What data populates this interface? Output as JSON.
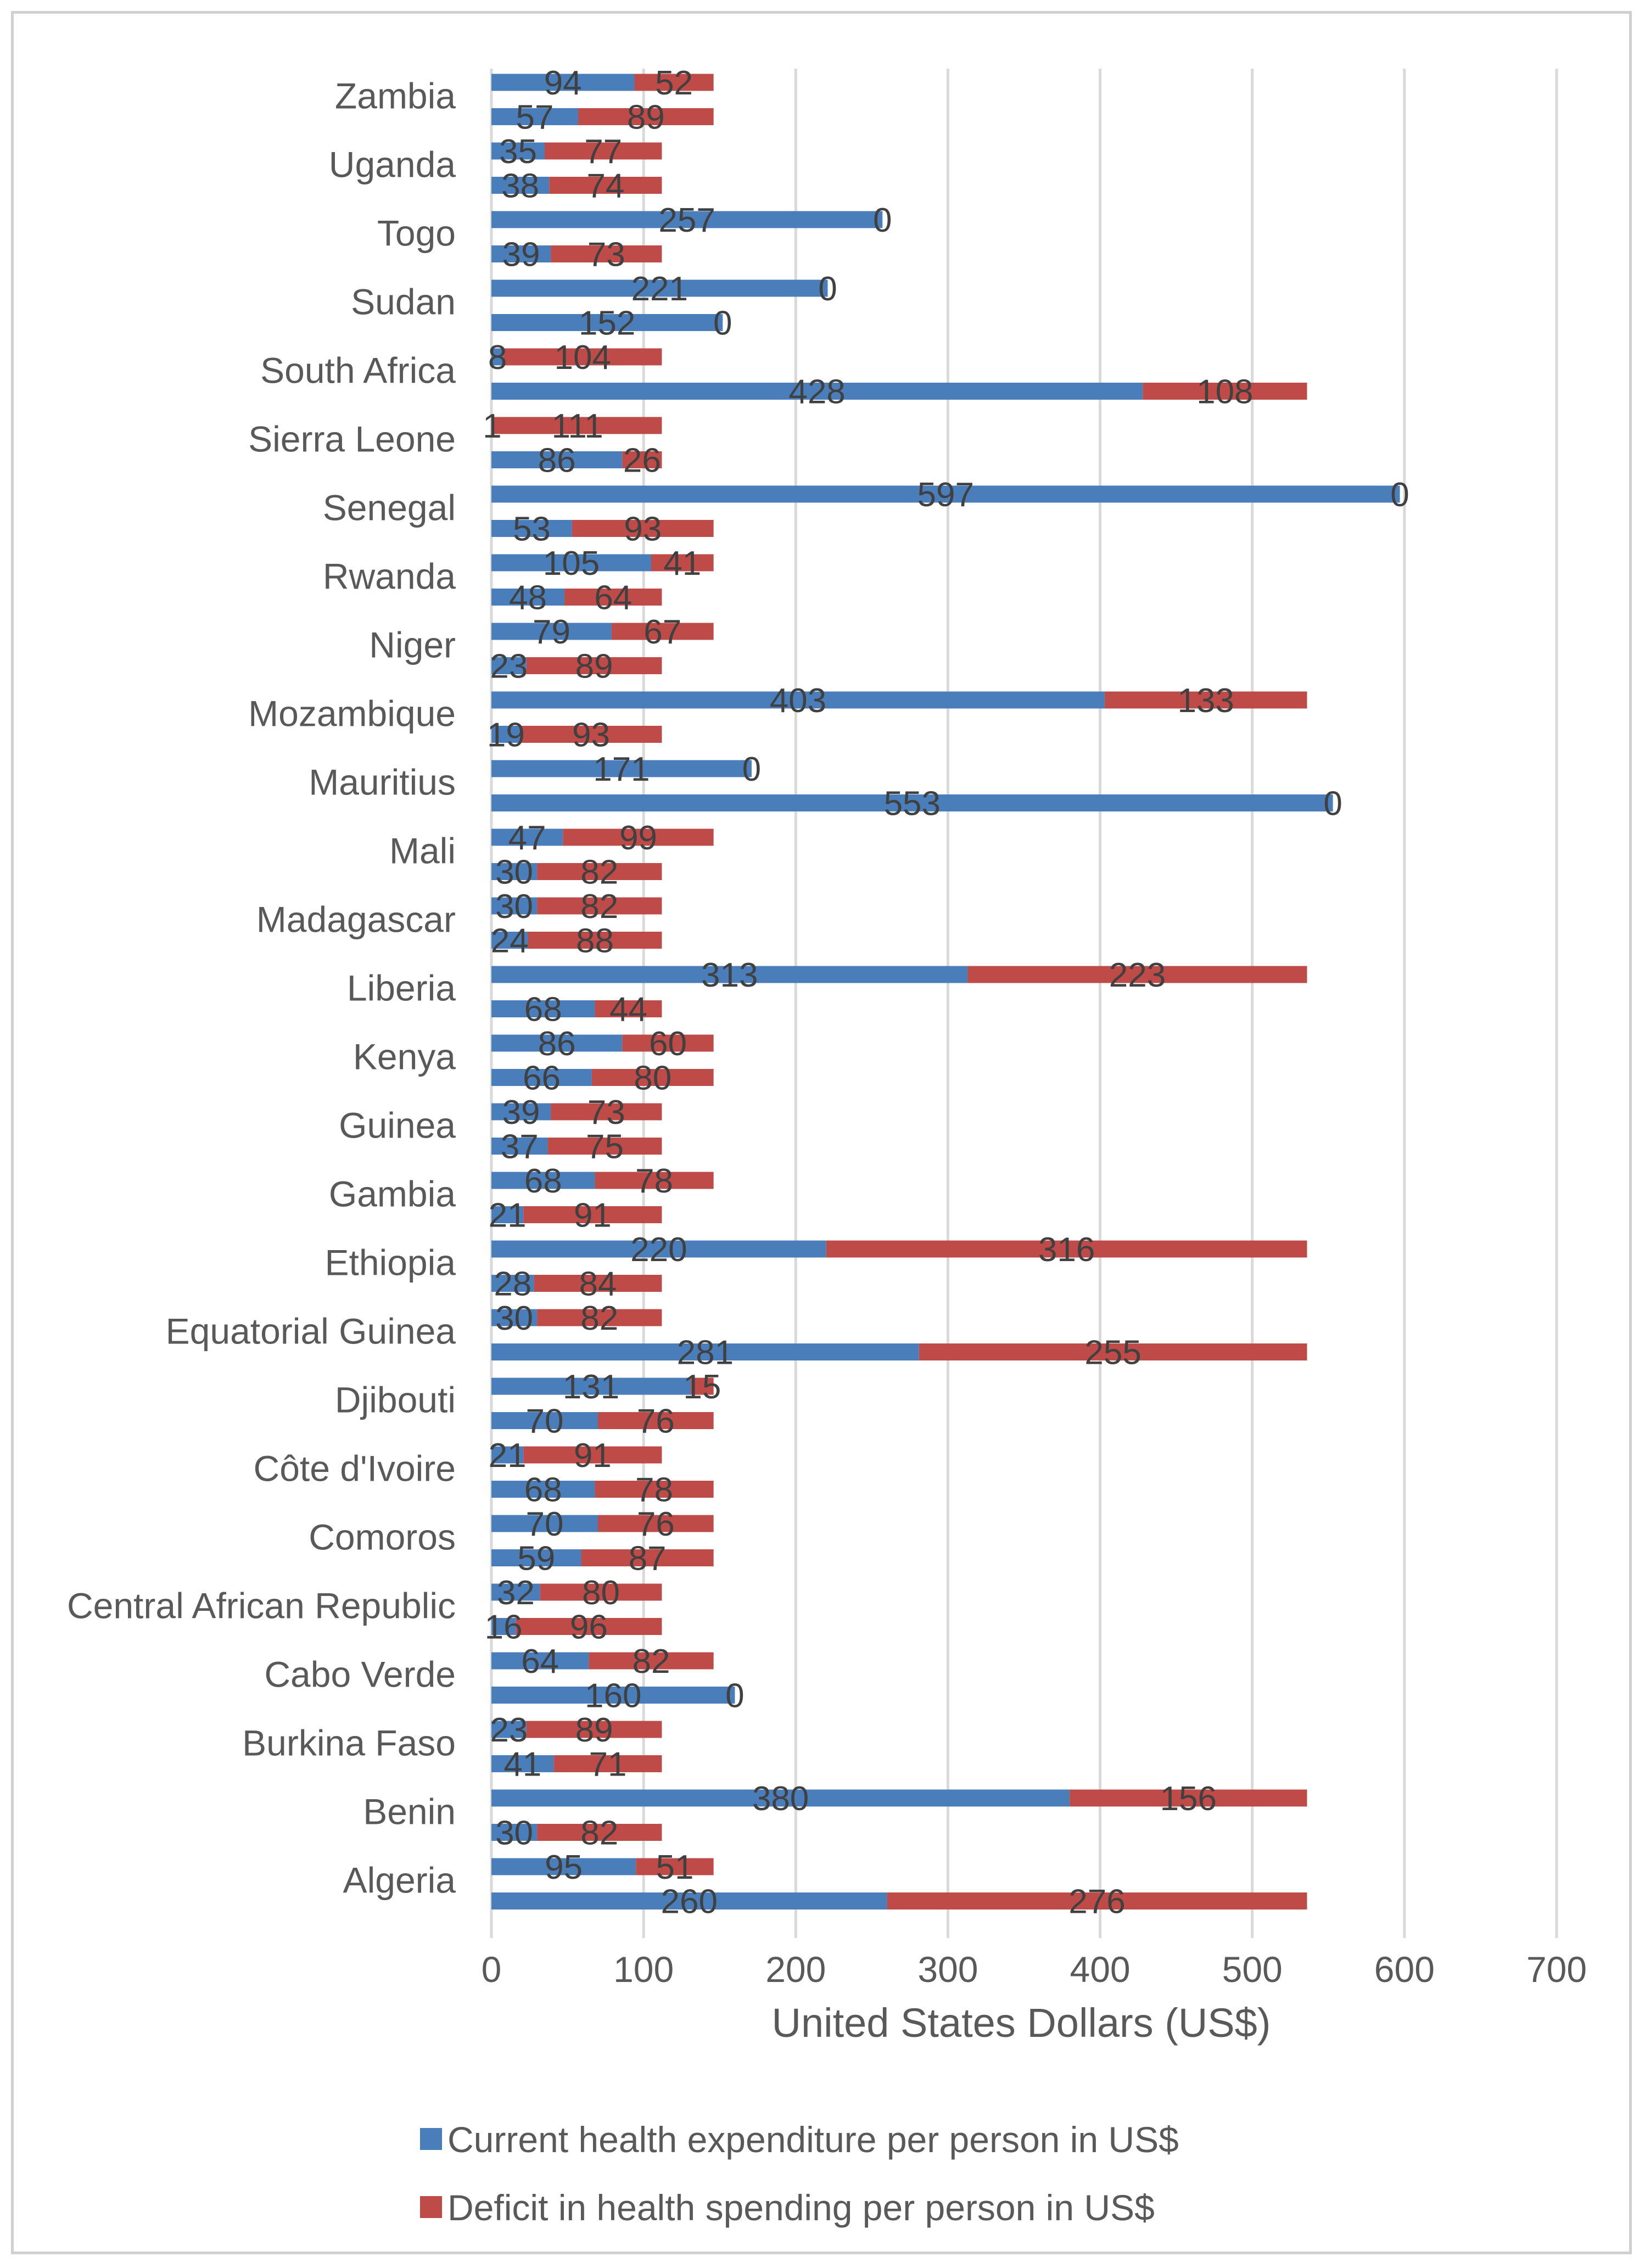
{
  "chart_data": {
    "type": "bar",
    "orientation": "horizontal",
    "stacked": true,
    "xlabel": "United States Dollars (US$)",
    "xlim": [
      0,
      700
    ],
    "xticks": [
      0,
      100,
      200,
      300,
      400,
      500,
      600,
      700
    ],
    "grid": true,
    "legend_position": "bottom",
    "colors": {
      "expenditure": "#4a7ebb",
      "deficit": "#be4b48",
      "grid": "#d9d9d9"
    },
    "series_names": [
      "Current health expenditure per person  in US$",
      "Deficit in health spending per person in US$"
    ],
    "bars": [
      {
        "exp": 94,
        "def": 52
      },
      {
        "exp": 57,
        "def": 89
      },
      {
        "exp": 35,
        "def": 77
      },
      {
        "exp": 38,
        "def": 74
      },
      {
        "exp": 257,
        "def": 0
      },
      {
        "exp": 39,
        "def": 73
      },
      {
        "exp": 221,
        "def": 0
      },
      {
        "exp": 152,
        "def": 0
      },
      {
        "exp": 8,
        "def": 104
      },
      {
        "exp": 428,
        "def": 108
      },
      {
        "exp": 1,
        "def": 111
      },
      {
        "exp": 86,
        "def": 26
      },
      {
        "exp": 597,
        "def": 0
      },
      {
        "exp": 53,
        "def": 93
      },
      {
        "exp": 105,
        "def": 41
      },
      {
        "exp": 48,
        "def": 64
      },
      {
        "exp": 79,
        "def": 67
      },
      {
        "exp": 23,
        "def": 89
      },
      {
        "exp": 403,
        "def": 133
      },
      {
        "exp": 19,
        "def": 93
      },
      {
        "exp": 171,
        "def": 0
      },
      {
        "exp": 553,
        "def": 0
      },
      {
        "exp": 47,
        "def": 99
      },
      {
        "exp": 30,
        "def": 82
      },
      {
        "exp": 30,
        "def": 82
      },
      {
        "exp": 24,
        "def": 88
      },
      {
        "exp": 313,
        "def": 223
      },
      {
        "exp": 68,
        "def": 44
      },
      {
        "exp": 86,
        "def": 60
      },
      {
        "exp": 66,
        "def": 80
      },
      {
        "exp": 39,
        "def": 73
      },
      {
        "exp": 37,
        "def": 75
      },
      {
        "exp": 68,
        "def": 78
      },
      {
        "exp": 21,
        "def": 91
      },
      {
        "exp": 220,
        "def": 316
      },
      {
        "exp": 28,
        "def": 84
      },
      {
        "exp": 30,
        "def": 82
      },
      {
        "exp": 281,
        "def": 255
      },
      {
        "exp": 131,
        "def": 15
      },
      {
        "exp": 70,
        "def": 76
      },
      {
        "exp": 21,
        "def": 91
      },
      {
        "exp": 68,
        "def": 78
      },
      {
        "exp": 70,
        "def": 76
      },
      {
        "exp": 59,
        "def": 87
      },
      {
        "exp": 32,
        "def": 80
      },
      {
        "exp": 16,
        "def": 96
      },
      {
        "exp": 64,
        "def": 82
      },
      {
        "exp": 160,
        "def": 0
      },
      {
        "exp": 23,
        "def": 89
      },
      {
        "exp": 41,
        "def": 71
      },
      {
        "exp": 380,
        "def": 156
      },
      {
        "exp": 30,
        "def": 82
      },
      {
        "exp": 95,
        "def": 51
      },
      {
        "exp": 260,
        "def": 276
      }
    ],
    "country_labels": [
      {
        "name": "Zambia",
        "bar_index": 1
      },
      {
        "name": "Uganda",
        "bar_index": 3
      },
      {
        "name": "Togo",
        "bar_index": 5
      },
      {
        "name": "Sudan",
        "bar_index": 7
      },
      {
        "name": "South Africa",
        "bar_index": 9
      },
      {
        "name": "Sierra Leone",
        "bar_index": 11
      },
      {
        "name": "Senegal",
        "bar_index": 13
      },
      {
        "name": "Rwanda",
        "bar_index": 15
      },
      {
        "name": "Niger",
        "bar_index": 17
      },
      {
        "name": "Mozambique",
        "bar_index": 19
      },
      {
        "name": "Mauritius",
        "bar_index": 21
      },
      {
        "name": "Mali",
        "bar_index": 23
      },
      {
        "name": "Madagascar",
        "bar_index": 25
      },
      {
        "name": "Liberia",
        "bar_index": 27
      },
      {
        "name": "Kenya",
        "bar_index": 29
      },
      {
        "name": "Guinea",
        "bar_index": 31
      },
      {
        "name": "Gambia",
        "bar_index": 33
      },
      {
        "name": "Ethiopia",
        "bar_index": 35
      },
      {
        "name": "Equatorial Guinea",
        "bar_index": 37
      },
      {
        "name": "Djibouti",
        "bar_index": 39
      },
      {
        "name": "Côte d'Ivoire",
        "bar_index": 41
      },
      {
        "name": "Comoros",
        "bar_index": 43
      },
      {
        "name": "Central African Republic",
        "bar_index": 45
      },
      {
        "name": "Cabo Verde",
        "bar_index": 47
      },
      {
        "name": "Burkina Faso",
        "bar_index": 49
      },
      {
        "name": "Benin",
        "bar_index": 51
      },
      {
        "name": "Algeria",
        "bar_index": 53
      }
    ]
  }
}
